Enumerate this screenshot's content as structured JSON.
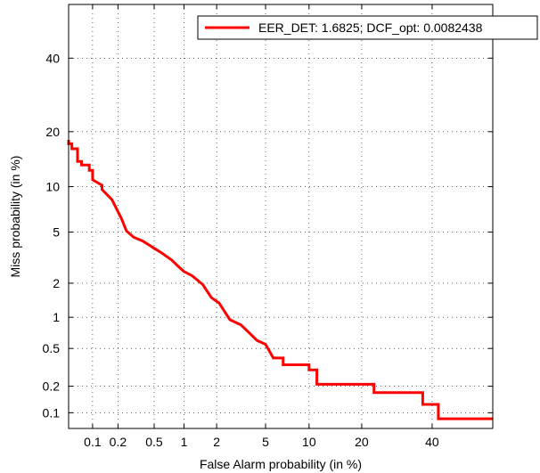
{
  "chart_data": {
    "type": "line",
    "title": "",
    "xlabel": "False Alarm probability (in %)",
    "ylabel": "Miss probability (in %)",
    "x_scale": "probit",
    "y_scale": "probit",
    "xlim": [
      0.05,
      60
    ],
    "ylim": [
      0.065,
      57
    ],
    "x_ticks": [
      0.1,
      0.2,
      0.5,
      1,
      2,
      5,
      10,
      20,
      40
    ],
    "x_tick_labels": [
      "0.1",
      "0.2",
      "0.5",
      "1",
      "2",
      "5",
      "10",
      "20",
      "40"
    ],
    "y_ticks": [
      0.1,
      0.2,
      0.5,
      1,
      2,
      5,
      10,
      20,
      40
    ],
    "y_tick_labels": [
      "0.1",
      "0.2",
      "0.5",
      "1",
      "2",
      "5",
      "10",
      "20",
      "40"
    ],
    "grid": true,
    "grid_style": "dotted",
    "legend_position": "top-right",
    "series": [
      {
        "name": "EER_DET: 1.6825; DCF_opt: 0.0082438",
        "color": "#ff0000",
        "x": [
          0.05,
          0.05,
          0.055,
          0.055,
          0.065,
          0.065,
          0.073,
          0.073,
          0.091,
          0.091,
          0.1,
          0.1,
          0.13,
          0.13,
          0.17,
          0.22,
          0.25,
          0.3,
          0.38,
          0.5,
          0.6,
          0.75,
          0.9,
          1.0,
          1.2,
          1.5,
          1.8,
          2.1,
          2.6,
          3.2,
          3.8,
          4.3,
          5.0,
          5.7,
          6.7,
          6.7,
          10.0,
          10.0,
          11.2,
          11.2,
          23.0,
          23.0,
          37.0,
          37.0,
          42.0,
          42.0,
          60.0
        ],
        "y": [
          18.2,
          17.4,
          17.4,
          16.4,
          16.4,
          14.0,
          14.0,
          13.4,
          13.4,
          12.5,
          12.5,
          11.0,
          10.2,
          9.6,
          8.3,
          6.2,
          5.1,
          4.6,
          4.3,
          3.8,
          3.5,
          3.1,
          2.7,
          2.5,
          2.3,
          1.95,
          1.5,
          1.35,
          0.95,
          0.85,
          0.7,
          0.6,
          0.55,
          0.4,
          0.4,
          0.34,
          0.34,
          0.3,
          0.3,
          0.21,
          0.21,
          0.17,
          0.17,
          0.125,
          0.125,
          0.085,
          0.085
        ]
      }
    ]
  }
}
